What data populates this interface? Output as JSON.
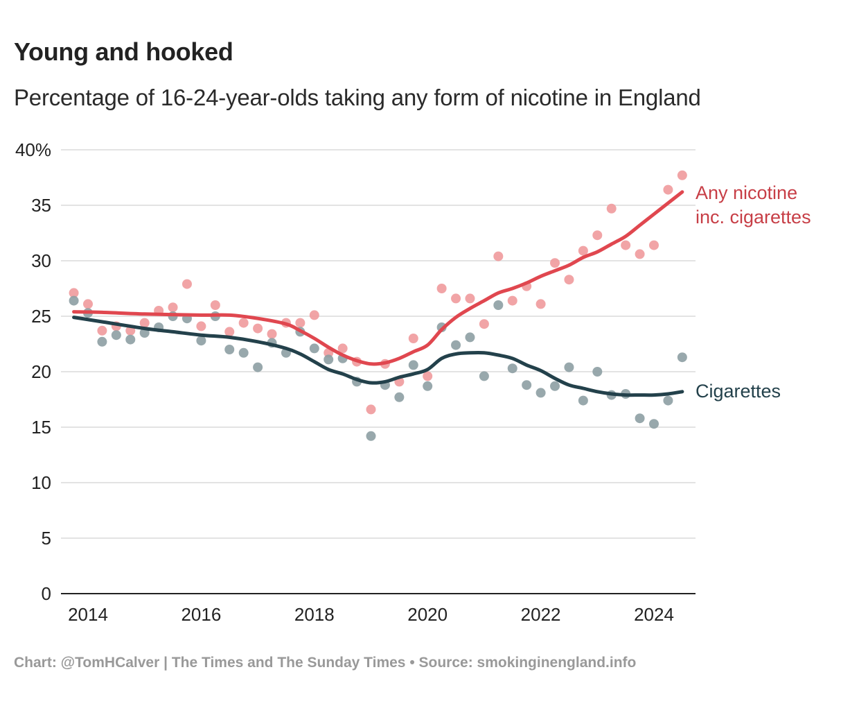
{
  "title": "Young and hooked",
  "subtitle": "Percentage of 16-24-year-olds taking any form of nicotine in England",
  "footer": "Chart: @TomHCalver | The Times and The Sunday Times • Source: smokinginengland.info",
  "chart_data": {
    "type": "scatter",
    "title": "Young and hooked",
    "subtitle": "Percentage of 16-24-year-olds taking any form of nicotine in England",
    "xlabel": "",
    "ylabel": "",
    "xlim": [
      2013.75,
      2024.75
    ],
    "ylim": [
      0,
      40
    ],
    "grid": true,
    "y_ticks": [
      0,
      5,
      10,
      15,
      20,
      25,
      30,
      35,
      40
    ],
    "y_tick_labels": [
      "0",
      "5",
      "10",
      "15",
      "20",
      "25",
      "30",
      "35",
      "40%"
    ],
    "x_ticks": [
      2014,
      2016,
      2018,
      2020,
      2022,
      2024
    ],
    "x_tick_labels": [
      "2014",
      "2016",
      "2018",
      "2020",
      "2022",
      "2024"
    ],
    "legend": "direct-labels-right",
    "x": [
      2013.75,
      2014.0,
      2014.25,
      2014.5,
      2014.75,
      2015.0,
      2015.25,
      2015.5,
      2015.75,
      2016.0,
      2016.25,
      2016.5,
      2016.75,
      2017.0,
      2017.25,
      2017.5,
      2017.75,
      2018.0,
      2018.25,
      2018.5,
      2018.75,
      2019.0,
      2019.25,
      2019.5,
      2019.75,
      2020.0,
      2020.25,
      2020.5,
      2020.75,
      2021.0,
      2021.25,
      2021.5,
      2021.75,
      2022.0,
      2022.25,
      2022.5,
      2022.75,
      2023.0,
      2023.25,
      2023.5,
      2023.75,
      2024.0,
      2024.25,
      2024.5
    ],
    "series": [
      {
        "name": "Any nicotine inc. cigarettes",
        "label_lines": [
          "Any nicotine",
          "inc. cigarettes"
        ],
        "color": "#e0474f",
        "dot_color": "#ef9a9c",
        "label_color": "#c73e46",
        "values": [
          27.1,
          26.1,
          23.7,
          24.1,
          23.7,
          24.4,
          25.5,
          25.8,
          27.9,
          24.1,
          26.0,
          23.6,
          24.4,
          23.9,
          23.4,
          24.4,
          24.4,
          25.1,
          21.7,
          22.1,
          20.9,
          16.6,
          20.7,
          19.1,
          23.0,
          19.6,
          27.5,
          26.6,
          26.6,
          24.3,
          30.4,
          26.4,
          27.7,
          26.1,
          29.8,
          28.3,
          30.9,
          32.3,
          34.7,
          31.4,
          30.6,
          31.4,
          36.4,
          37.7
        ],
        "trend_x": [
          2013.75,
          2014.25,
          2015.0,
          2016.0,
          2016.5,
          2017.0,
          2017.5,
          2017.75,
          2018.0,
          2018.25,
          2018.5,
          2018.75,
          2019.0,
          2019.25,
          2019.5,
          2019.75,
          2020.0,
          2020.25,
          2020.5,
          2020.75,
          2021.0,
          2021.25,
          2021.5,
          2021.75,
          2022.0,
          2022.25,
          2022.5,
          2022.75,
          2023.0,
          2023.25,
          2023.5,
          2023.75,
          2024.0,
          2024.25,
          2024.5
        ],
        "trend": [
          25.4,
          25.35,
          25.2,
          25.1,
          25.1,
          24.8,
          24.3,
          23.7,
          23.0,
          22.2,
          21.5,
          21.0,
          20.7,
          20.8,
          21.2,
          21.8,
          22.4,
          23.8,
          24.9,
          25.7,
          26.4,
          27.1,
          27.5,
          28.0,
          28.6,
          29.1,
          29.6,
          30.3,
          30.8,
          31.5,
          32.2,
          33.2,
          34.2,
          35.2,
          36.2
        ]
      },
      {
        "name": "Cigarettes",
        "label_lines": [
          "Cigarettes"
        ],
        "color": "#23414b",
        "dot_color": "#8d9ea3",
        "label_color": "#23414b",
        "values": [
          26.4,
          25.3,
          22.7,
          23.3,
          22.9,
          23.5,
          24.0,
          25.0,
          24.8,
          22.8,
          25.0,
          22.0,
          21.7,
          20.4,
          22.6,
          21.7,
          23.6,
          22.1,
          21.1,
          21.2,
          19.1,
          14.2,
          18.8,
          17.7,
          20.6,
          18.7,
          24.0,
          22.4,
          23.1,
          19.6,
          26.0,
          20.3,
          18.8,
          18.1,
          18.7,
          20.4,
          17.4,
          20.0,
          17.9,
          18.0,
          15.8,
          15.3,
          17.4,
          21.3
        ],
        "trend_x": [
          2013.75,
          2014.25,
          2015.0,
          2015.5,
          2016.0,
          2016.5,
          2017.0,
          2017.5,
          2017.75,
          2018.0,
          2018.25,
          2018.5,
          2018.75,
          2019.0,
          2019.25,
          2019.5,
          2019.75,
          2020.0,
          2020.25,
          2020.5,
          2020.75,
          2021.0,
          2021.25,
          2021.5,
          2021.75,
          2022.0,
          2022.25,
          2022.5,
          2022.75,
          2023.0,
          2023.25,
          2023.5,
          2023.75,
          2024.0,
          2024.25,
          2024.5
        ],
        "trend": [
          24.9,
          24.5,
          23.9,
          23.6,
          23.3,
          23.1,
          22.7,
          22.1,
          21.6,
          20.9,
          20.2,
          19.8,
          19.3,
          19.0,
          19.1,
          19.5,
          19.8,
          20.2,
          21.2,
          21.6,
          21.7,
          21.7,
          21.5,
          21.2,
          20.6,
          20.1,
          19.4,
          18.8,
          18.5,
          18.2,
          18.0,
          17.9,
          17.9,
          17.9,
          18.0,
          18.2
        ]
      }
    ]
  }
}
